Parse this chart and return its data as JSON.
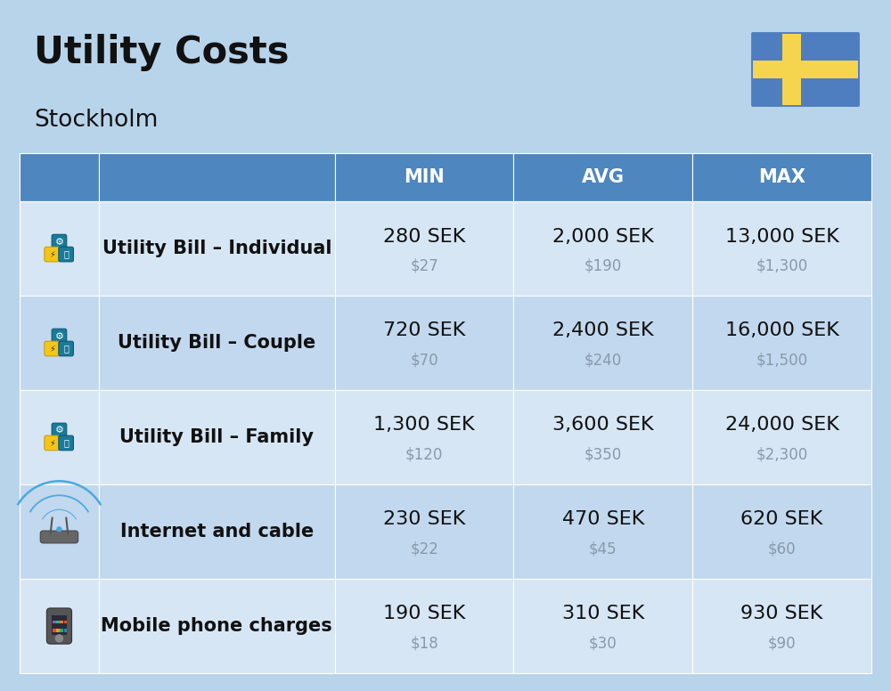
{
  "title": "Utility Costs",
  "subtitle": "Stockholm",
  "background_color": "#b8d4ea",
  "header_bg_color": "#4e86c0",
  "header_text_color": "#ffffff",
  "row_bg_color_1": "#d6e6f5",
  "row_bg_color_2": "#c2d8ee",
  "col_header_labels": [
    "MIN",
    "AVG",
    "MAX"
  ],
  "rows": [
    {
      "label": "Utility Bill – Individual",
      "min_sek": "280 SEK",
      "min_usd": "$27",
      "avg_sek": "2,000 SEK",
      "avg_usd": "$190",
      "max_sek": "13,000 SEK",
      "max_usd": "$1,300"
    },
    {
      "label": "Utility Bill – Couple",
      "min_sek": "720 SEK",
      "min_usd": "$70",
      "avg_sek": "2,400 SEK",
      "avg_usd": "$240",
      "max_sek": "16,000 SEK",
      "max_usd": "$1,500"
    },
    {
      "label": "Utility Bill – Family",
      "min_sek": "1,300 SEK",
      "min_usd": "$120",
      "avg_sek": "3,600 SEK",
      "avg_usd": "$350",
      "max_sek": "24,000 SEK",
      "max_usd": "$2,300"
    },
    {
      "label": "Internet and cable",
      "min_sek": "230 SEK",
      "min_usd": "$22",
      "avg_sek": "470 SEK",
      "avg_usd": "$45",
      "max_sek": "620 SEK",
      "max_usd": "$60"
    },
    {
      "label": "Mobile phone charges",
      "min_sek": "190 SEK",
      "min_usd": "$18",
      "avg_sek": "310 SEK",
      "avg_usd": "$30",
      "max_sek": "930 SEK",
      "max_usd": "$90"
    }
  ],
  "flag_blue": "#4e7ec0",
  "flag_yellow": "#f5d44e",
  "sek_fontsize": 16,
  "usd_fontsize": 12,
  "usd_color": "#8899aa",
  "label_fontsize": 15,
  "header_fontsize": 15,
  "title_fontsize": 30,
  "subtitle_fontsize": 19
}
